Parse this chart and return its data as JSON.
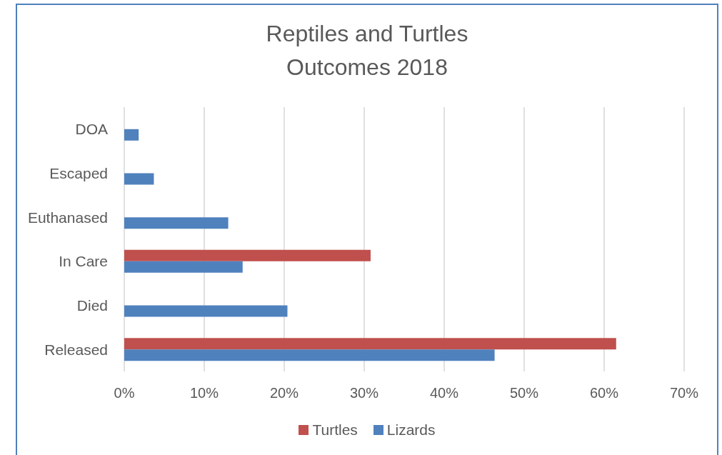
{
  "chart_data": {
    "type": "bar",
    "orientation": "horizontal",
    "title": "Reptiles and Turtles\nOutcomes 2018",
    "categories": [
      "DOA",
      "Escaped",
      "Euthanased",
      "In Care",
      "Died",
      "Released"
    ],
    "series": [
      {
        "name": "Turtles",
        "color": "#c0504d",
        "values": [
          null,
          null,
          null,
          30.8,
          null,
          61.5
        ]
      },
      {
        "name": "Lizards",
        "color": "#4f81bd",
        "values": [
          1.8,
          3.7,
          13.0,
          14.8,
          20.4,
          46.3
        ]
      }
    ],
    "xlim": [
      0,
      70
    ],
    "xticks": [
      {
        "value": 0,
        "label": "0%"
      },
      {
        "value": 10,
        "label": "10%"
      },
      {
        "value": 20,
        "label": "20%"
      },
      {
        "value": 30,
        "label": "30%"
      },
      {
        "value": 40,
        "label": "40%"
      },
      {
        "value": 50,
        "label": "50%"
      },
      {
        "value": 60,
        "label": "60%"
      },
      {
        "value": 70,
        "label": "70%"
      }
    ],
    "grid": "x",
    "legend": "bottom"
  }
}
